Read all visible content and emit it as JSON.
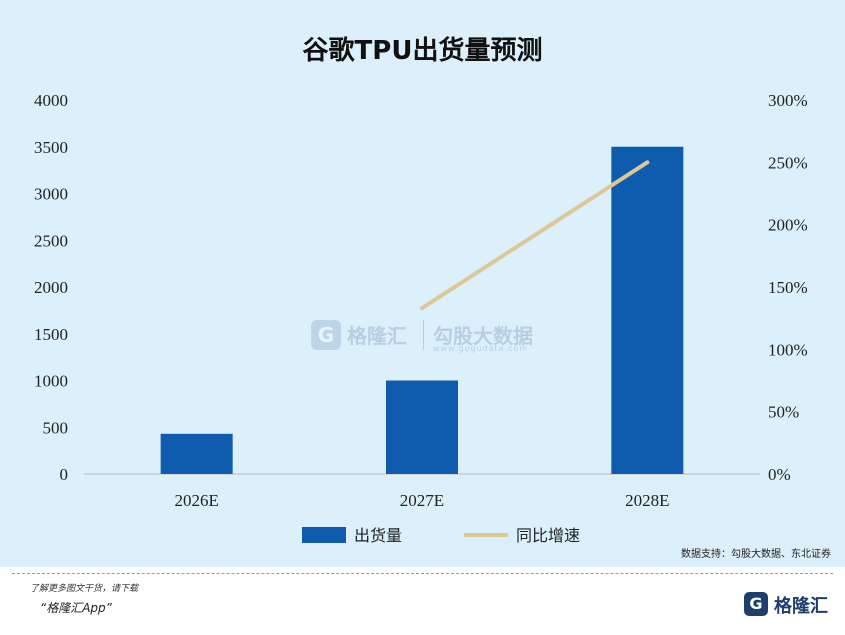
{
  "title": "谷歌TPU出货量预测",
  "colors": {
    "bar": "#0f5cae",
    "line": "#dcc795",
    "panel": "#dbf0fb"
  },
  "chart_data": {
    "type": "bar",
    "categories": [
      "2026E",
      "2027E",
      "2028E"
    ],
    "series": [
      {
        "name": "出货量",
        "type": "bar",
        "axis": "left",
        "values": [
          430,
          1000,
          3500
        ]
      },
      {
        "name": "同比增速",
        "type": "line",
        "axis": "right",
        "values": [
          null,
          133,
          250
        ]
      }
    ],
    "ylim": [
      0,
      4000
    ],
    "yticks": [
      "0",
      "500",
      "1000",
      "1500",
      "2000",
      "2500",
      "3000",
      "3500",
      "4000"
    ],
    "y2lim": [
      0,
      300
    ],
    "y2ticks": [
      "0%",
      "50%",
      "100%",
      "150%",
      "200%",
      "250%",
      "300%"
    ],
    "legend_position": "bottom"
  },
  "source": "数据支持：勾股大数据、东北证券",
  "watermark": {
    "brand": "格隆汇",
    "brand_icon": "G",
    "name": "勾股大数据",
    "url": "www.gogudata.com"
  },
  "promo": {
    "line1": "了解更多图文干货，请下载",
    "line2": "“格隆汇App”"
  },
  "logo": {
    "icon": "G",
    "text": "格隆汇"
  }
}
